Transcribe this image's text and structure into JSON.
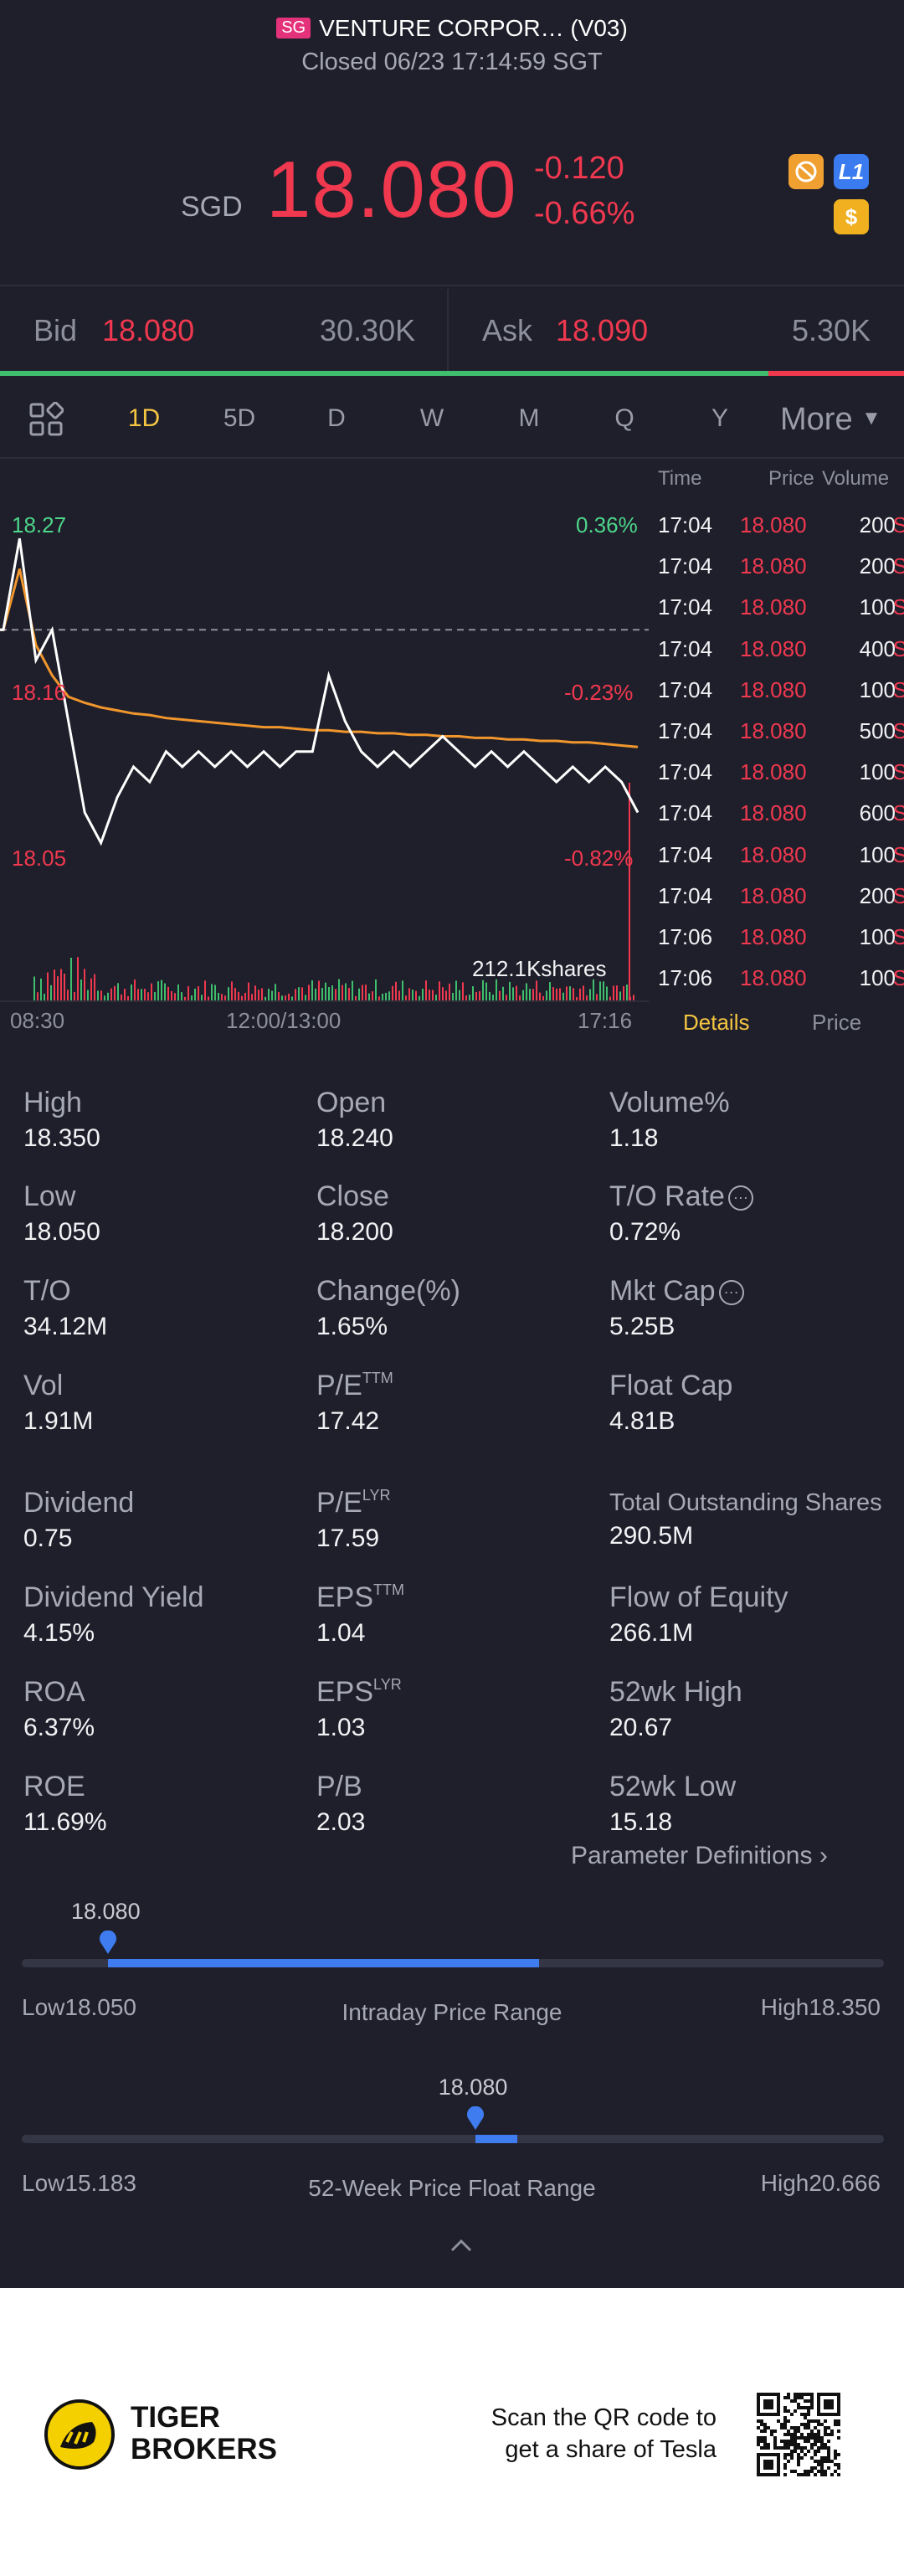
{
  "header": {
    "market_badge": "SG",
    "title": "VENTURE CORPOR… (V03)",
    "status": "Closed 06/23 17:14:59 SGT"
  },
  "quote": {
    "currency": "SGD",
    "price": "18.080",
    "change": "-0.120",
    "change_pct": "-0.66%",
    "badges": [
      "no-short-icon",
      "L1",
      "$"
    ]
  },
  "bidask": {
    "bid_label": "Bid",
    "bid_price": "18.080",
    "bid_size": "30.30K",
    "ask_label": "Ask",
    "ask_price": "18.090",
    "ask_size": "5.30K",
    "bid_ratio": 0.85
  },
  "tabs": [
    "1D",
    "5D",
    "D",
    "W",
    "M",
    "Q",
    "Y"
  ],
  "tab_active": "1D",
  "more_label": "More",
  "chart": {
    "price_high_label": "18.27",
    "price_mid_label": "18.16",
    "price_low_label": "18.05",
    "pct_high": "0.36%",
    "pct_mid": "-0.23%",
    "pct_low": "-0.82%",
    "volume_label": "212.1Kshares",
    "time_start": "08:30",
    "time_mid": "12:00/13:00",
    "time_end": "17:16"
  },
  "chart_data": {
    "type": "line",
    "title": "",
    "ylim": [
      18.05,
      18.27
    ],
    "prev_close": 18.2,
    "series": [
      {
        "values": [
          18.2,
          18.26,
          18.18,
          18.2,
          18.14,
          18.08,
          18.06,
          18.09,
          18.11,
          18.1,
          18.12,
          18.11,
          18.12,
          18.11,
          18.12,
          18.11,
          18.12,
          18.11,
          18.12,
          18.12,
          18.17,
          18.14,
          18.12,
          18.11,
          18.12,
          18.11,
          18.12,
          18.13,
          18.12,
          18.11,
          18.12,
          18.11,
          18.12,
          18.11,
          18.1,
          18.11,
          18.1,
          18.11,
          18.1,
          18.08
        ]
      },
      {
        "values": [
          18.2,
          18.24,
          18.19,
          18.17,
          18.156,
          18.152,
          18.149,
          18.147,
          18.145,
          18.144,
          18.142,
          18.141,
          18.14,
          18.139,
          18.138,
          18.137,
          18.136,
          18.136,
          18.135,
          18.134,
          18.134,
          18.133,
          18.133,
          18.132,
          18.132,
          18.131,
          18.131,
          18.13,
          18.13,
          18.129,
          18.129,
          18.128,
          18.128,
          18.127,
          18.127,
          18.126,
          18.126,
          18.125,
          18.124,
          18.123
        ]
      }
    ]
  },
  "ticks": {
    "headers": {
      "time": "Time",
      "price": "Price",
      "volume": "Volume"
    },
    "rows": [
      {
        "time": "17:04",
        "price": "18.080",
        "vol": "200",
        "side": "S"
      },
      {
        "time": "17:04",
        "price": "18.080",
        "vol": "200",
        "side": "S"
      },
      {
        "time": "17:04",
        "price": "18.080",
        "vol": "100",
        "side": "S"
      },
      {
        "time": "17:04",
        "price": "18.080",
        "vol": "400",
        "side": "S"
      },
      {
        "time": "17:04",
        "price": "18.080",
        "vol": "100",
        "side": "S"
      },
      {
        "time": "17:04",
        "price": "18.080",
        "vol": "500",
        "side": "S"
      },
      {
        "time": "17:04",
        "price": "18.080",
        "vol": "100",
        "side": "S"
      },
      {
        "time": "17:04",
        "price": "18.080",
        "vol": "600",
        "side": "S"
      },
      {
        "time": "17:04",
        "price": "18.080",
        "vol": "100",
        "side": "S"
      },
      {
        "time": "17:04",
        "price": "18.080",
        "vol": "200",
        "side": "S"
      },
      {
        "time": "17:06",
        "price": "18.080",
        "vol": "100",
        "side": "S"
      },
      {
        "time": "17:06",
        "price": "18.080",
        "vol": "100",
        "side": "S"
      }
    ],
    "tab_details": "Details",
    "tab_price": "Price"
  },
  "stats": {
    "high": {
      "label": "High",
      "value": "18.350"
    },
    "open": {
      "label": "Open",
      "value": "18.240"
    },
    "volume_pct": {
      "label": "Volume%",
      "value": "1.18"
    },
    "low": {
      "label": "Low",
      "value": "18.050"
    },
    "close": {
      "label": "Close",
      "value": "18.200"
    },
    "to_rate": {
      "label": "T/O Rate",
      "value": "0.72%"
    },
    "to": {
      "label": "T/O",
      "value": "34.12M"
    },
    "change_pct": {
      "label": "Change(%)",
      "value": "1.65%"
    },
    "mkt_cap": {
      "label": "Mkt Cap",
      "value": "5.25B"
    },
    "vol": {
      "label": "Vol",
      "value": "1.91M"
    },
    "pe_ttm": {
      "label": "P/E",
      "sup": "TTM",
      "value": "17.42"
    },
    "float_cap": {
      "label": "Float Cap",
      "value": "4.81B"
    },
    "dividend": {
      "label": "Dividend",
      "value": "0.75"
    },
    "pe_lyr": {
      "label": "P/E",
      "sup": "LYR",
      "value": "17.59"
    },
    "total_shares": {
      "label": "Total Outstanding Shares",
      "value": "290.5M"
    },
    "div_yield": {
      "label": "Dividend Yield",
      "value": "4.15%"
    },
    "eps_ttm": {
      "label": "EPS",
      "sup": "TTM",
      "value": "1.04"
    },
    "flow_equity": {
      "label": "Flow of Equity",
      "value": "266.1M"
    },
    "roa": {
      "label": "ROA",
      "value": "6.37%"
    },
    "eps_lyr": {
      "label": "EPS",
      "sup": "LYR",
      "value": "1.03"
    },
    "wk52_high": {
      "label": "52wk High",
      "value": "20.67"
    },
    "roe": {
      "label": "ROE",
      "value": "11.69%"
    },
    "pb": {
      "label": "P/B",
      "value": "2.03"
    },
    "wk52_low": {
      "label": "52wk Low",
      "value": "15.18"
    }
  },
  "param_def": "Parameter Definitions",
  "intraday_range": {
    "current": "18.080",
    "low": "Low18.050",
    "high": "High18.350",
    "title": "Intraday Price Range",
    "pos": 0.1,
    "fill_end": 0.6
  },
  "week52_range": {
    "current": "18.080",
    "low": "Low15.183",
    "high": "High20.666",
    "title": "52-Week Price Float Range",
    "pos": 0.526,
    "fill_end": 0.575
  },
  "footer": {
    "brand_line1": "TIGER",
    "brand_line2": "BROKERS",
    "qr_line1": "Scan the QR code to",
    "qr_line2": "get a share of Tesla"
  }
}
